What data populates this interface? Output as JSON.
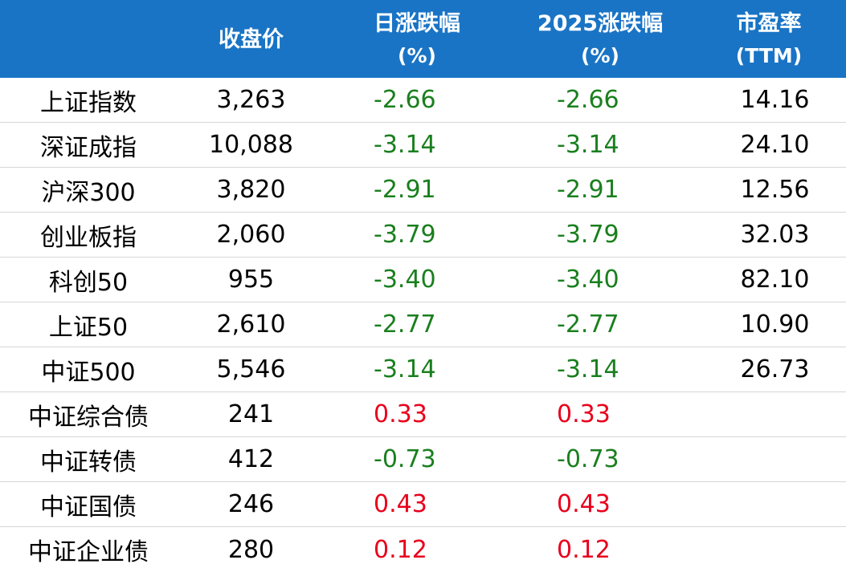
{
  "colors": {
    "header_bg": "#1a74c5",
    "header_text": "#ffffff",
    "negative": "#1a7f1e",
    "positive": "#e8001c"
  },
  "header": {
    "col_name": "",
    "col_close": "收盘价",
    "col_day_line1": "日涨跌幅",
    "col_day_line2": "(%)",
    "col_ytd_line1": "2025涨跌幅",
    "col_ytd_line2": "(%)",
    "col_pe_line1": "市盈率",
    "col_pe_line2": "(TTM)"
  },
  "rows": [
    {
      "name": "上证指数",
      "close": "3,263",
      "day": "-2.66",
      "ytd": "-2.66",
      "pe": "14.16",
      "day_sign": "neg",
      "ytd_sign": "neg"
    },
    {
      "name": "深证成指",
      "close": "10,088",
      "day": "-3.14",
      "ytd": "-3.14",
      "pe": "24.10",
      "day_sign": "neg",
      "ytd_sign": "neg"
    },
    {
      "name": "沪深300",
      "close": "3,820",
      "day": "-2.91",
      "ytd": "-2.91",
      "pe": "12.56",
      "day_sign": "neg",
      "ytd_sign": "neg"
    },
    {
      "name": "创业板指",
      "close": "2,060",
      "day": "-3.79",
      "ytd": "-3.79",
      "pe": "32.03",
      "day_sign": "neg",
      "ytd_sign": "neg"
    },
    {
      "name": "科创50",
      "close": "955",
      "day": "-3.40",
      "ytd": "-3.40",
      "pe": "82.10",
      "day_sign": "neg",
      "ytd_sign": "neg"
    },
    {
      "name": "上证50",
      "close": "2,610",
      "day": "-2.77",
      "ytd": "-2.77",
      "pe": "10.90",
      "day_sign": "neg",
      "ytd_sign": "neg"
    },
    {
      "name": "中证500",
      "close": "5,546",
      "day": "-3.14",
      "ytd": "-3.14",
      "pe": "26.73",
      "day_sign": "neg",
      "ytd_sign": "neg"
    },
    {
      "name": "中证综合债",
      "close": "241",
      "day": "0.33",
      "ytd": "0.33",
      "pe": "",
      "day_sign": "pos",
      "ytd_sign": "pos"
    },
    {
      "name": "中证转债",
      "close": "412",
      "day": "-0.73",
      "ytd": "-0.73",
      "pe": "",
      "day_sign": "neg",
      "ytd_sign": "neg"
    },
    {
      "name": "中证国债",
      "close": "246",
      "day": "0.43",
      "ytd": "0.43",
      "pe": "",
      "day_sign": "pos",
      "ytd_sign": "pos"
    },
    {
      "name": "中证企业债",
      "close": "280",
      "day": "0.12",
      "ytd": "0.12",
      "pe": "",
      "day_sign": "pos",
      "ytd_sign": "pos"
    }
  ]
}
